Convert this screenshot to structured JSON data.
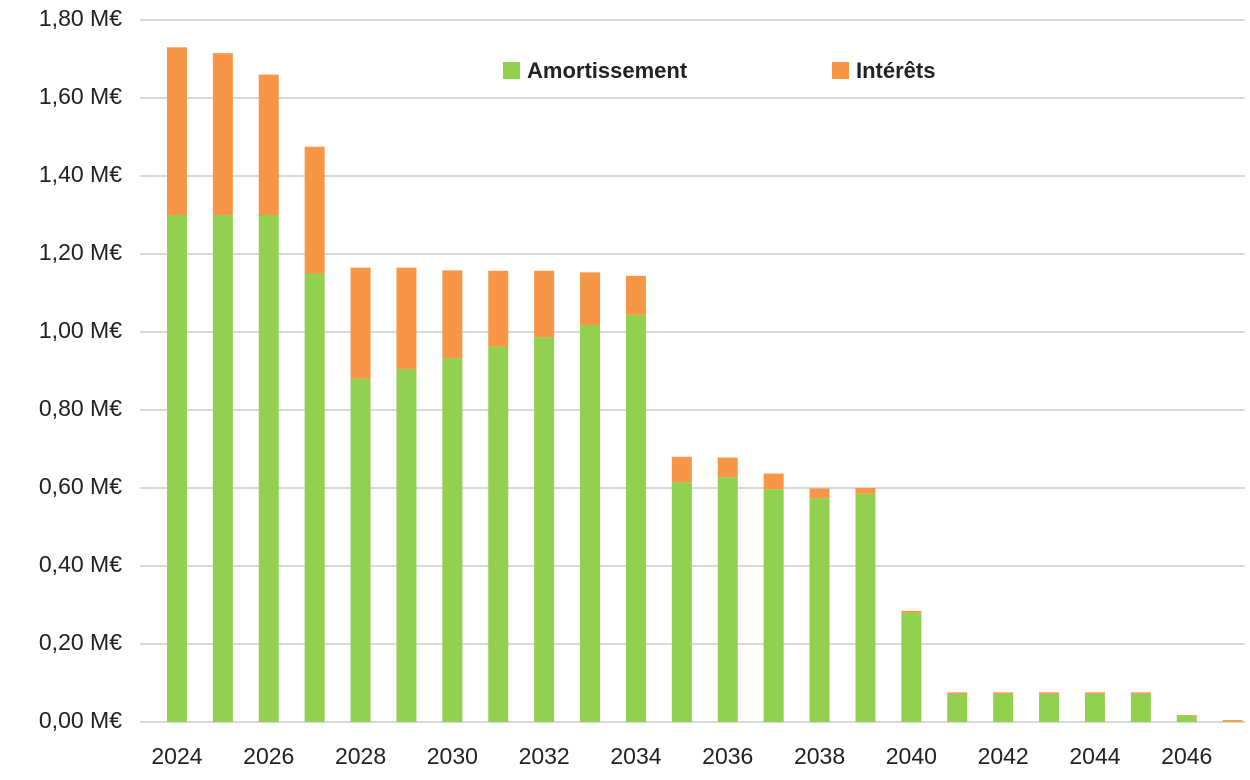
{
  "chart_data": {
    "type": "stacked_bar",
    "categories": [
      "2024",
      null,
      "2026",
      null,
      "2028",
      null,
      "2030",
      null,
      "2032",
      null,
      "2034",
      null,
      "2036",
      null,
      "2038",
      null,
      "2040",
      null,
      "2042",
      null,
      "2044",
      null,
      "2046",
      null
    ],
    "series": [
      {
        "name": "Amortissement",
        "color": "#92d050",
        "values": [
          1.3,
          1.3,
          1.3,
          1.15,
          0.88,
          0.905,
          0.933,
          0.962,
          0.987,
          1.018,
          1.044,
          0.615,
          0.628,
          0.597,
          0.574,
          0.585,
          0.28,
          0.072,
          0.072,
          0.072,
          0.072,
          0.072,
          0.016,
          0.001
        ]
      },
      {
        "name": "Intérêts",
        "color": "#f79646",
        "values": [
          0.43,
          0.415,
          0.36,
          0.325,
          0.285,
          0.26,
          0.225,
          0.195,
          0.17,
          0.135,
          0.1,
          0.065,
          0.05,
          0.04,
          0.025,
          0.015,
          0.005,
          0.004,
          0.004,
          0.004,
          0.004,
          0.004,
          0.002,
          0.004
        ]
      }
    ],
    "ylim": [
      0,
      1.8
    ],
    "yticks": [
      {
        "value": 0,
        "label": "0,00 M€"
      },
      {
        "value": 0.2,
        "label": "0,20 M€"
      },
      {
        "value": 0.4,
        "label": "0,40 M€"
      },
      {
        "value": 0.6,
        "label": "0,60 M€"
      },
      {
        "value": 0.8,
        "label": "0,80 M€"
      },
      {
        "value": 1.0,
        "label": "1,00 M€"
      },
      {
        "value": 1.2,
        "label": "1,20 M€"
      },
      {
        "value": 1.4,
        "label": "1,40 M€"
      },
      {
        "value": 1.6,
        "label": "1,60 M€"
      },
      {
        "value": 1.8,
        "label": "1,80 M€"
      }
    ],
    "grid": true,
    "legend": "top"
  }
}
